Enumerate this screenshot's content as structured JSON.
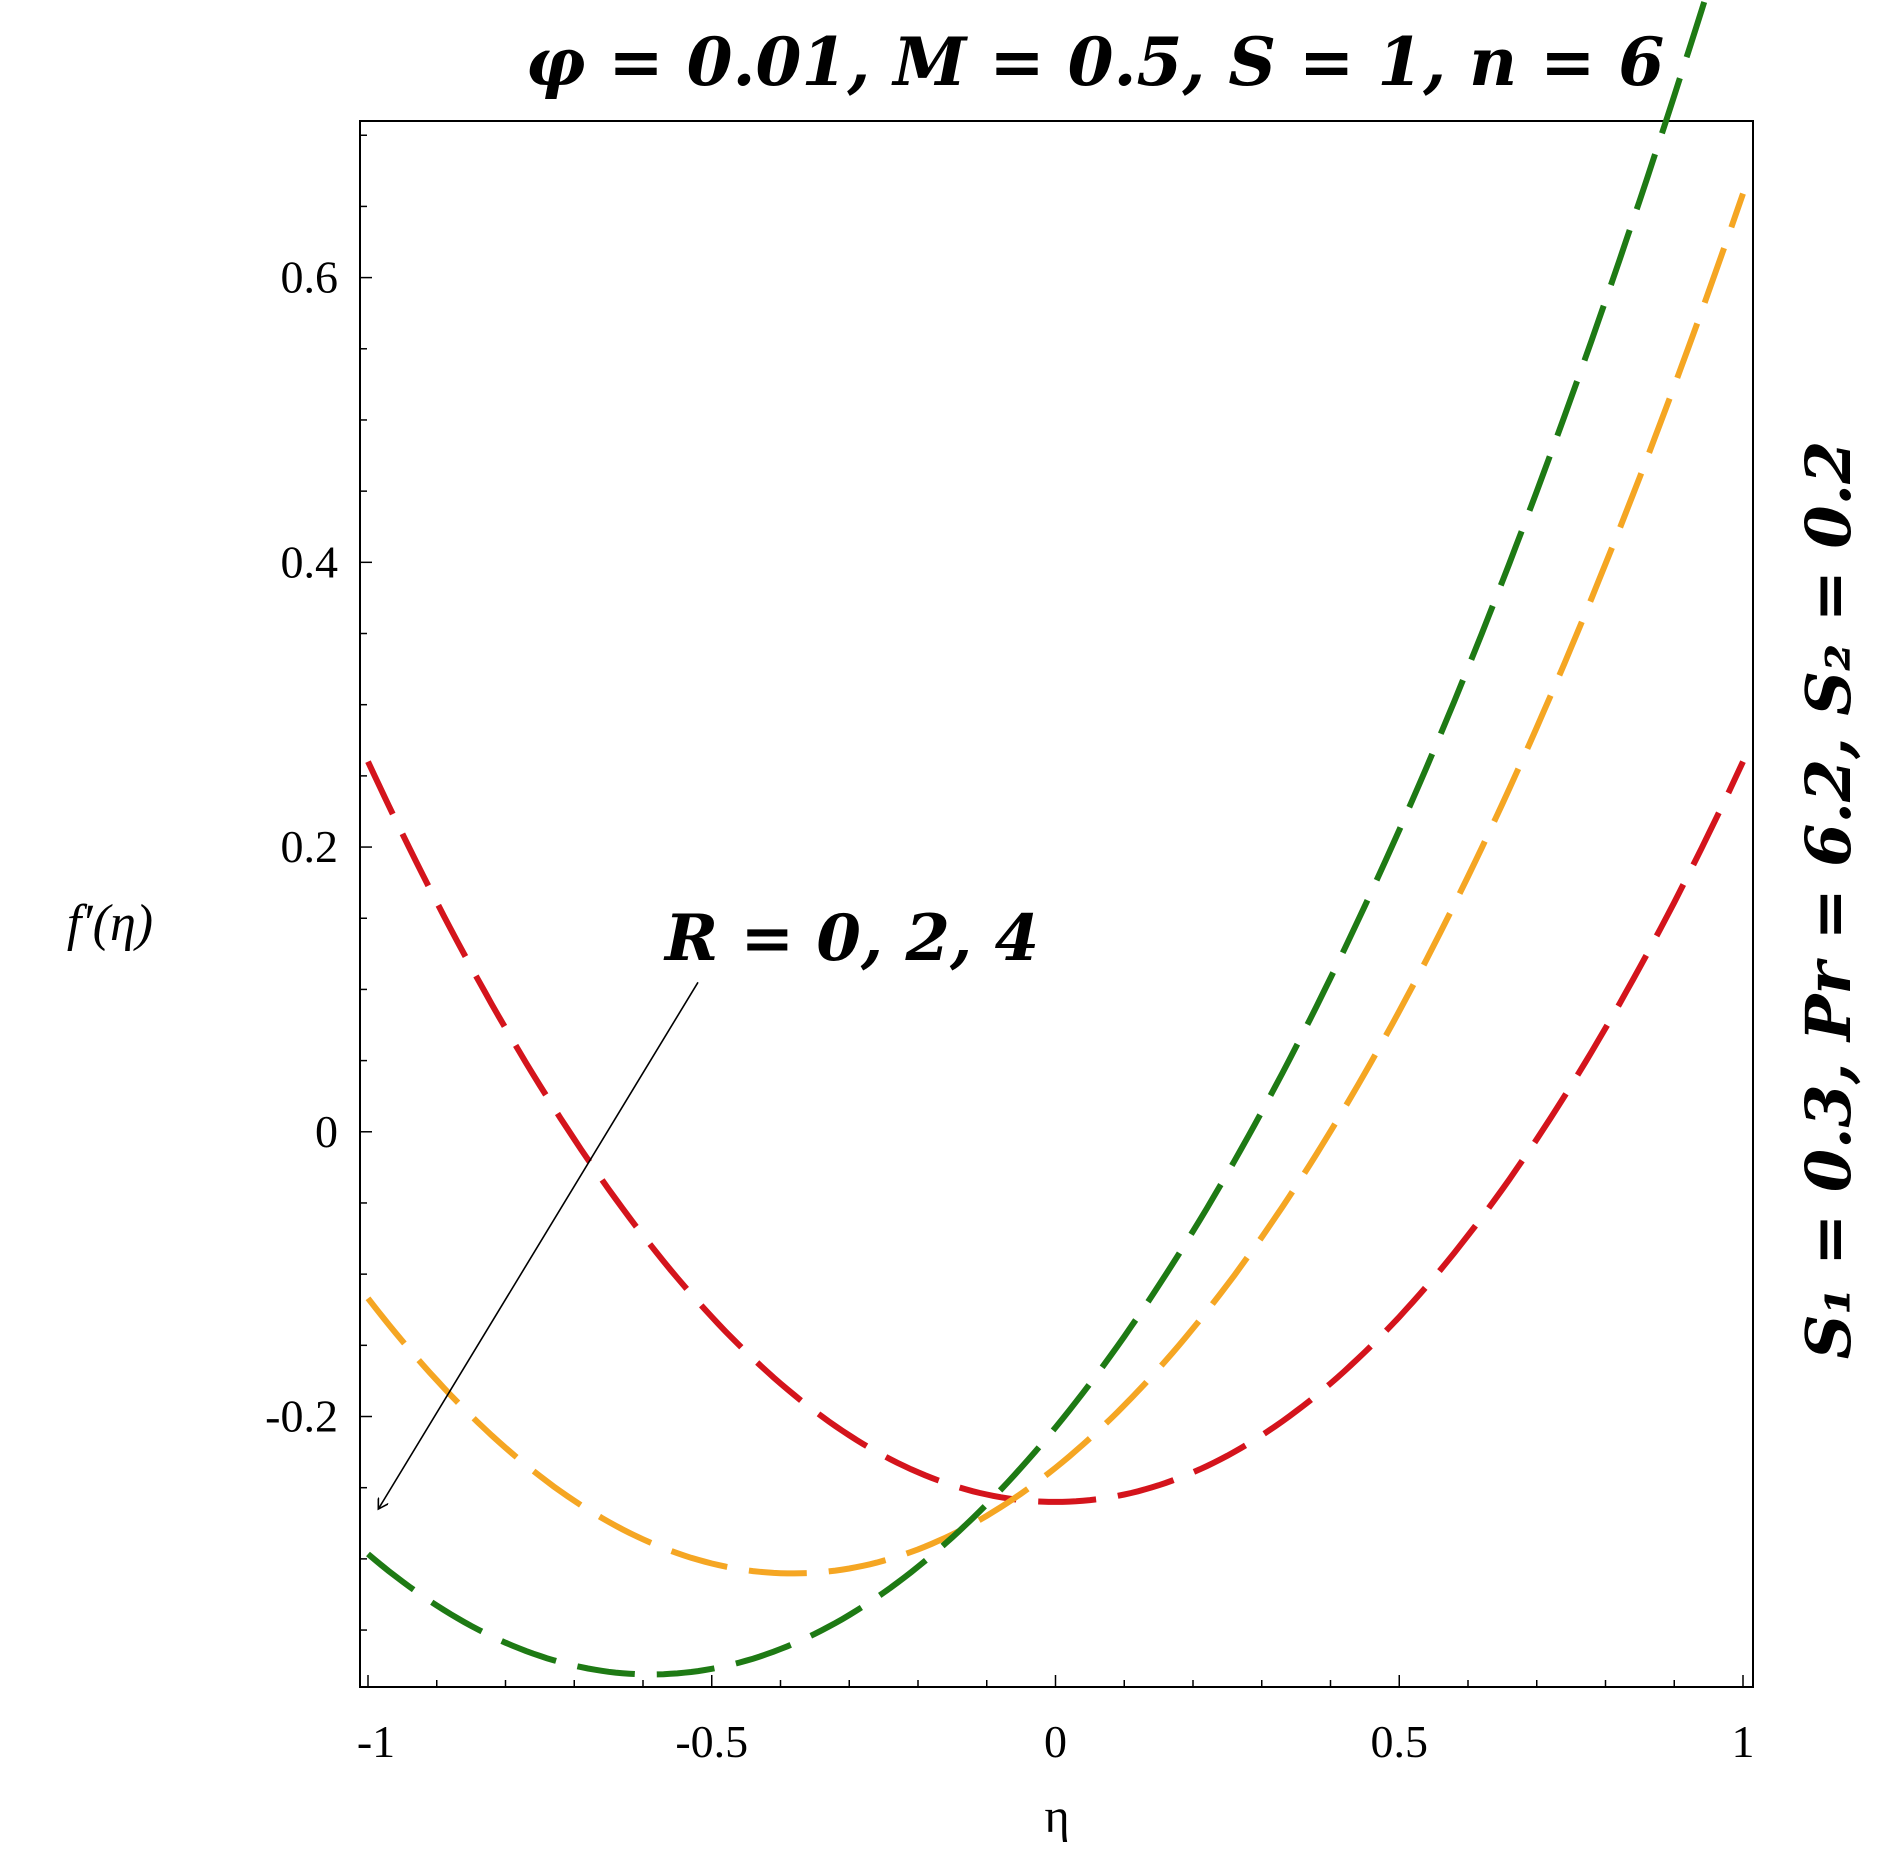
{
  "chart_data": {
    "type": "line",
    "title": "φ = 0.01, M = 0.5, S = 1, n = 6",
    "side_label": "S₁ = 0.3, Pr = 6.2, S₂ = 0.2",
    "xlabel": "η",
    "ylabel": "f′(η)",
    "xlim": [
      -1.0,
      1.0
    ],
    "ylim": [
      -0.39,
      0.71
    ],
    "x_ticks": [
      -1,
      -0.5,
      0,
      0.5,
      1
    ],
    "x_tick_labels": [
      "-1",
      "-0.5",
      "0",
      "0.5",
      "1"
    ],
    "y_ticks": [
      -0.2,
      0,
      0.2,
      0.4,
      0.6
    ],
    "y_tick_labels": [
      "-0.2",
      "0",
      "0.2",
      "0.4",
      "0.6"
    ],
    "grid": false,
    "line_style": "dashed",
    "annotation": {
      "text": "R = 0, 2, 4",
      "arrow_from": [
        -0.52,
        0.105
      ],
      "arrow_to": [
        -0.985,
        -0.265
      ]
    },
    "series": [
      {
        "name": "R = 0",
        "color": "#d4141c",
        "a": 0.52,
        "b": 0.0,
        "c": -0.26
      },
      {
        "name": "R = 2",
        "color": "#f5a623",
        "a": 0.507,
        "b": 0.388,
        "c": -0.236
      },
      {
        "name": "R = 4",
        "color": "#1e7a14",
        "a": 0.5003,
        "b": 0.5892,
        "c": -0.2077
      }
    ]
  }
}
